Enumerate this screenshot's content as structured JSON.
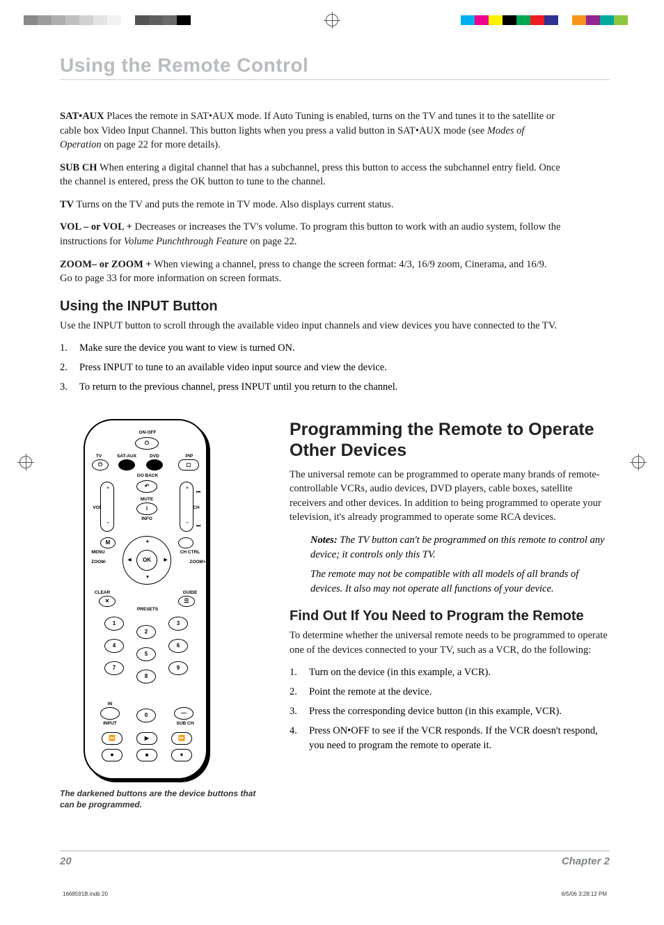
{
  "color_bars": {
    "left": [
      "#8a8a8a",
      "#9c9c9c",
      "#aeaeae",
      "#c0c0c0",
      "#d2d2d2",
      "#e4e4e4",
      "#f2f2f2",
      "#ffffff",
      "#545454",
      "#5f5f5f",
      "#6a6a6a",
      "#000000"
    ],
    "right": [
      "#00aeef",
      "#ec008c",
      "#fff200",
      "#000000",
      "#00a651",
      "#ed1c24",
      "#2e3192",
      "#ffffff",
      "#f7941d",
      "#92278f",
      "#00a99d",
      "#8dc63f"
    ]
  },
  "chapter_title": "Using the Remote Control",
  "definitions": [
    {
      "term": "SAT•AUX",
      "text_before": "   Places the remote in SAT•AUX mode. If Auto Tuning is enabled, turns on the TV and tunes it to the satellite or cable box Video Input Channel. This button lights when you press a valid button in SAT•AUX mode (see ",
      "ital": "Modes of Operation",
      "text_after": " on page 22 for more details)."
    },
    {
      "term": "SUB CH",
      "text_before": "   When entering a digital channel that has a subchannel, press this button to access the subchannel entry field. Once the channel is entered, press the OK button to tune to the channel.",
      "ital": "",
      "text_after": ""
    },
    {
      "term": "TV",
      "text_before": "   Turns on the TV and puts the remote in TV mode. Also displays current status.",
      "ital": "",
      "text_after": ""
    },
    {
      "term": "VOL – or VOL +",
      "text_before": "   Decreases or increases the TV's volume. To program this button to work with an audio system, follow the instructions for ",
      "ital": "Volume Punchthrough Feature",
      "text_after": " on page 22."
    },
    {
      "term": "ZOOM– or ZOOM +",
      "text_before": "   When viewing a channel, press to change the screen format: 4/3, 16/9 zoom, Cinerama, and 16/9. Go to page 33 for more information on screen formats.",
      "ital": "",
      "text_after": ""
    }
  ],
  "input_section": {
    "heading": "Using the INPUT Button",
    "intro": "Use the INPUT button to scroll through the available video input channels and view devices you have connected to the TV.",
    "steps": [
      "Make sure the device you want to view is turned ON.",
      "Press INPUT to tune to an available video input source and view the device.",
      "To return to the previous channel, press INPUT until you return to the channel."
    ]
  },
  "programming_section": {
    "heading": "Programming the Remote to Operate Other Devices",
    "intro": "The universal remote can be programmed to operate many brands of remote-controllable VCRs, audio devices, DVD players, cable boxes, satellite receivers and other devices. In addition to being programmed to operate your television, it's already programmed to operate some RCA devices.",
    "notes_label": "Notes:",
    "note1": " The TV button can't be programmed on this remote to control any device; it controls only this TV.",
    "note2": "The remote may not be compatible with all models of all brands of devices. It also may not operate all functions of your device.",
    "sub_heading": "Find Out If You Need to Program the Remote",
    "sub_intro": "To determine whether the universal remote needs to be programmed to operate one of the devices connected to your TV, such as a VCR, do the following:",
    "steps": [
      "Turn on the device (in this example, a VCR).",
      "Point the remote at the device.",
      "Press the corresponding device button (in this example, VCR).",
      "Press ON•OFF to see if the VCR responds. If the VCR doesn't respond, you need to program the remote to operate it."
    ]
  },
  "remote": {
    "caption": "The darkened buttons are the device buttons that can be programmed.",
    "labels": {
      "on_off": "ON-OFF",
      "tv": "TV",
      "sat_aux": "SAT-AUX",
      "dvd": "DVD",
      "pip": "PIP",
      "go_back": "GO BACK",
      "vol": "VOL",
      "ch": "CH",
      "mute": "MUTE",
      "info": "INFO",
      "menu": "MENU",
      "ch_ctrl": "CH CTRL",
      "m": "M",
      "zoom_minus": "ZOOM-",
      "zoom_plus": "ZOOM+",
      "ok": "OK",
      "clear": "CLEAR",
      "guide": "GUIDE",
      "presets": "PRESETS",
      "in": "IN",
      "input": "INPUT",
      "sub_ch": "SUB CH"
    },
    "keypad": [
      "1",
      "2",
      "3",
      "4",
      "5",
      "6",
      "7",
      "8",
      "9",
      "0"
    ]
  },
  "footer": {
    "page": "20",
    "chapter": "Chapter 2"
  },
  "print_meta": {
    "file": "1668591B.indb   20",
    "datetime": "6/5/06   3:28:12 PM"
  }
}
